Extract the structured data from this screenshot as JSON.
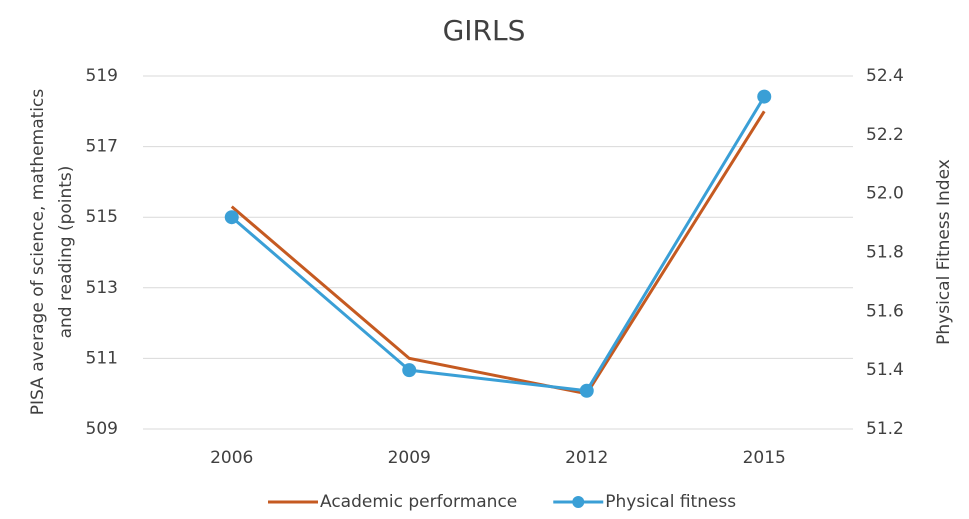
{
  "chart_data": {
    "type": "line",
    "title": "GIRLS",
    "ylabel": [
      "PISA average of science, mathematics",
      "and reading (points)"
    ],
    "y2label": "Physical Fitness Index",
    "categories": [
      "2006",
      "2009",
      "2012",
      "2015"
    ],
    "series": [
      {
        "name": "Academic performance",
        "color": "#c55a21",
        "values": [
          515.3,
          511.0,
          510.0,
          518.0
        ],
        "marker": false
      },
      {
        "name": "Physical fitness",
        "color": "#3a9fd6",
        "values": [
          51.92,
          51.4,
          51.33,
          52.33
        ],
        "axis": "y2",
        "marker": true
      }
    ],
    "ylim": [
      509,
      519
    ],
    "yticks": [
      509,
      511,
      513,
      515,
      517,
      519
    ],
    "y2lim": [
      51.2,
      52.4
    ],
    "y2ticks": [
      51.2,
      51.4,
      51.6,
      51.8,
      {
        "value": 52,
        "label": "52.0"
      },
      52.2,
      52.4
    ],
    "grid": true,
    "legend": "bottom"
  }
}
